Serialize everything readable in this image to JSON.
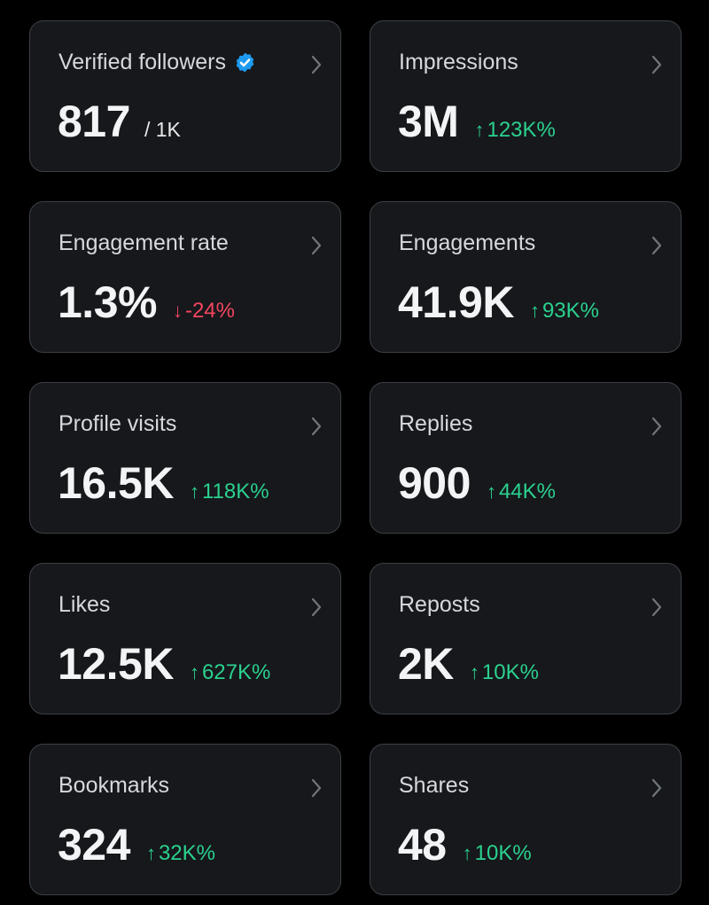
{
  "colors": {
    "background": "#000000",
    "card_background": "#16181c",
    "card_border": "#3c4045",
    "positive": "#2bd18e",
    "negative": "#f4465e",
    "verified_badge": "#1d9bf0"
  },
  "cards": [
    {
      "title": "Verified followers",
      "value": "817",
      "total": "/ 1K",
      "icons": [
        "verified-badge-icon",
        "chevron-right-icon"
      ]
    },
    {
      "title": "Impressions",
      "value": "3M",
      "change": "123K%",
      "direction": "up",
      "arrow": "↑"
    },
    {
      "title": "Engagement rate",
      "value": "1.3%",
      "change": "-24%",
      "direction": "down",
      "arrow": "↓"
    },
    {
      "title": "Engagements",
      "value": "41.9K",
      "change": "93K%",
      "direction": "up",
      "arrow": "↑"
    },
    {
      "title": "Profile visits",
      "value": "16.5K",
      "change": "118K%",
      "direction": "up",
      "arrow": "↑"
    },
    {
      "title": "Replies",
      "value": "900",
      "change": "44K%",
      "direction": "up",
      "arrow": "↑"
    },
    {
      "title": "Likes",
      "value": "12.5K",
      "change": "627K%",
      "direction": "up",
      "arrow": "↑"
    },
    {
      "title": "Reposts",
      "value": "2K",
      "change": "10K%",
      "direction": "up",
      "arrow": "↑"
    },
    {
      "title": "Bookmarks",
      "value": "324",
      "change": "32K%",
      "direction": "up",
      "arrow": "↑"
    },
    {
      "title": "Shares",
      "value": "48",
      "change": "10K%",
      "direction": "up",
      "arrow": "↑"
    }
  ]
}
